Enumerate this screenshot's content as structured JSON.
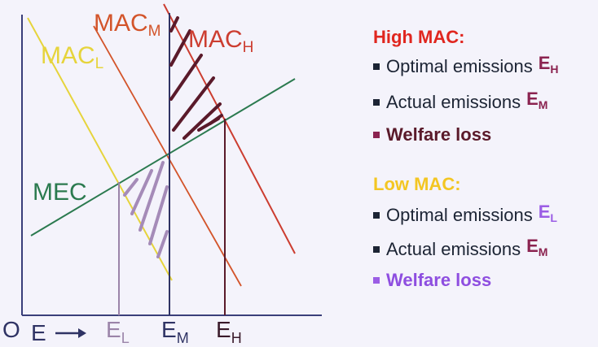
{
  "colors": {
    "mac_h": "#cc3d30",
    "mac_m": "#d3542a",
    "mac_l": "#e6d43c",
    "mec": "#2b7a4f",
    "axis": "#3a3f7a",
    "hatch_high": "#5a1a2a",
    "hatch_low": "#a58bb8",
    "vline_high": "#5a1a2a",
    "vline_mid": "#2f3364",
    "vline_low": "#9b84a9",
    "high_heading": "#e0261f",
    "low_heading": "#f3c623",
    "sym_high": "#8b2350",
    "sym_low": "#9b5de5",
    "welfare_high": "#5a1a2a",
    "welfare_low": "#8e4ee0",
    "text": "#1c2434"
  },
  "curves": {
    "mac_h": {
      "base": "MAC",
      "sub": "H"
    },
    "mac_m": {
      "base": "MAC",
      "sub": "M"
    },
    "mac_l": {
      "base": "MAC",
      "sub": "L"
    },
    "mec": {
      "label": "MEC"
    }
  },
  "axis": {
    "origin": "O",
    "x_var": "E",
    "arrow_icon": "right-arrow",
    "ticks": [
      {
        "base": "E",
        "sub": "L"
      },
      {
        "base": "E",
        "sub": "M"
      },
      {
        "base": "E",
        "sub": "H"
      }
    ]
  },
  "legend": {
    "high": {
      "heading": "High MAC:",
      "items": [
        {
          "text": "Optimal emissions",
          "sym": "E",
          "sub": "H"
        },
        {
          "text": "Actual emissions",
          "sym": "E",
          "sub": "M"
        },
        {
          "text": "Welfare loss"
        }
      ]
    },
    "low": {
      "heading": "Low MAC:",
      "items": [
        {
          "text": "Optimal emissions",
          "sym": "E",
          "sub": "L"
        },
        {
          "text": "Actual emissions",
          "sym": "E",
          "sub": "M"
        },
        {
          "text": "Welfare loss"
        }
      ]
    }
  }
}
